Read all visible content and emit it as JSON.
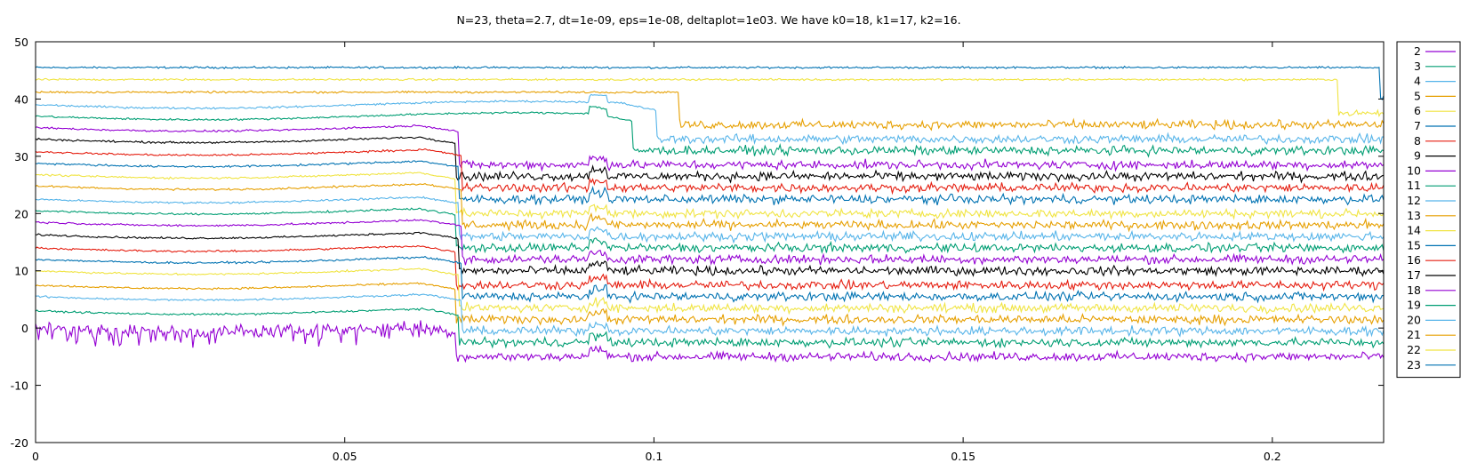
{
  "chart_data": {
    "type": "line",
    "title": "N=23, theta=2.7, dt=1e-09, eps=1e-08, deltaplot=1e03. We have k0=18, k1=17, k2=16.",
    "xlabel": "",
    "ylabel": "",
    "xlim": [
      0,
      0.218
    ],
    "ylim": [
      -20,
      50
    ],
    "xticks": [
      "0",
      "0.05",
      "0.1",
      "0.15",
      "0.2"
    ],
    "yticks": [
      "50",
      "40",
      "30",
      "20",
      "10",
      "0",
      "-10",
      "-20"
    ],
    "legend_placement": "outside-right",
    "grid": false,
    "series": [
      {
        "name": "2",
        "color": "#9400d3",
        "start": 0.0,
        "end": -5.0
      },
      {
        "name": "3",
        "color": "#009e73",
        "start": 3.0,
        "end": -2.5
      },
      {
        "name": "4",
        "color": "#56b4e9",
        "start": 5.5,
        "end": -0.5
      },
      {
        "name": "5",
        "color": "#e69f00",
        "start": 7.5,
        "end": 1.5
      },
      {
        "name": "6",
        "color": "#f0e442",
        "start": 10.0,
        "end": 3.5
      },
      {
        "name": "7",
        "color": "#0072b2",
        "start": 12.0,
        "end": 5.5
      },
      {
        "name": "8",
        "color": "#e51e10",
        "start": 14.0,
        "end": 7.5
      },
      {
        "name": "9",
        "color": "#000000",
        "start": 16.3,
        "end": 10.0
      },
      {
        "name": "10",
        "color": "#9400d3",
        "start": 18.5,
        "end": 12.0
      },
      {
        "name": "11",
        "color": "#009e73",
        "start": 20.5,
        "end": 14.0
      },
      {
        "name": "12",
        "color": "#56b4e9",
        "start": 22.5,
        "end": 16.0
      },
      {
        "name": "13",
        "color": "#e69f00",
        "start": 24.8,
        "end": 18.0
      },
      {
        "name": "14",
        "color": "#f0e442",
        "start": 26.8,
        "end": 20.0
      },
      {
        "name": "15",
        "color": "#0072b2",
        "start": 28.8,
        "end": 22.5
      },
      {
        "name": "16",
        "color": "#e51e10",
        "start": 30.8,
        "end": 24.5
      },
      {
        "name": "17",
        "color": "#000000",
        "start": 33.0,
        "end": 26.5
      },
      {
        "name": "18",
        "color": "#9400d3",
        "start": 35.0,
        "end": 28.5
      },
      {
        "name": "19",
        "color": "#009e73",
        "start": 37.0,
        "end": 31.0
      },
      {
        "name": "20",
        "color": "#56b4e9",
        "start": 39.0,
        "end": 33.0
      },
      {
        "name": "21",
        "color": "#e69f00",
        "start": 41.2,
        "end": 35.5
      },
      {
        "name": "22",
        "color": "#f0e442",
        "start": 43.4,
        "end": 37.5
      },
      {
        "name": "23",
        "color": "#0072b2",
        "start": 45.5,
        "end": 40.0
      }
    ]
  }
}
